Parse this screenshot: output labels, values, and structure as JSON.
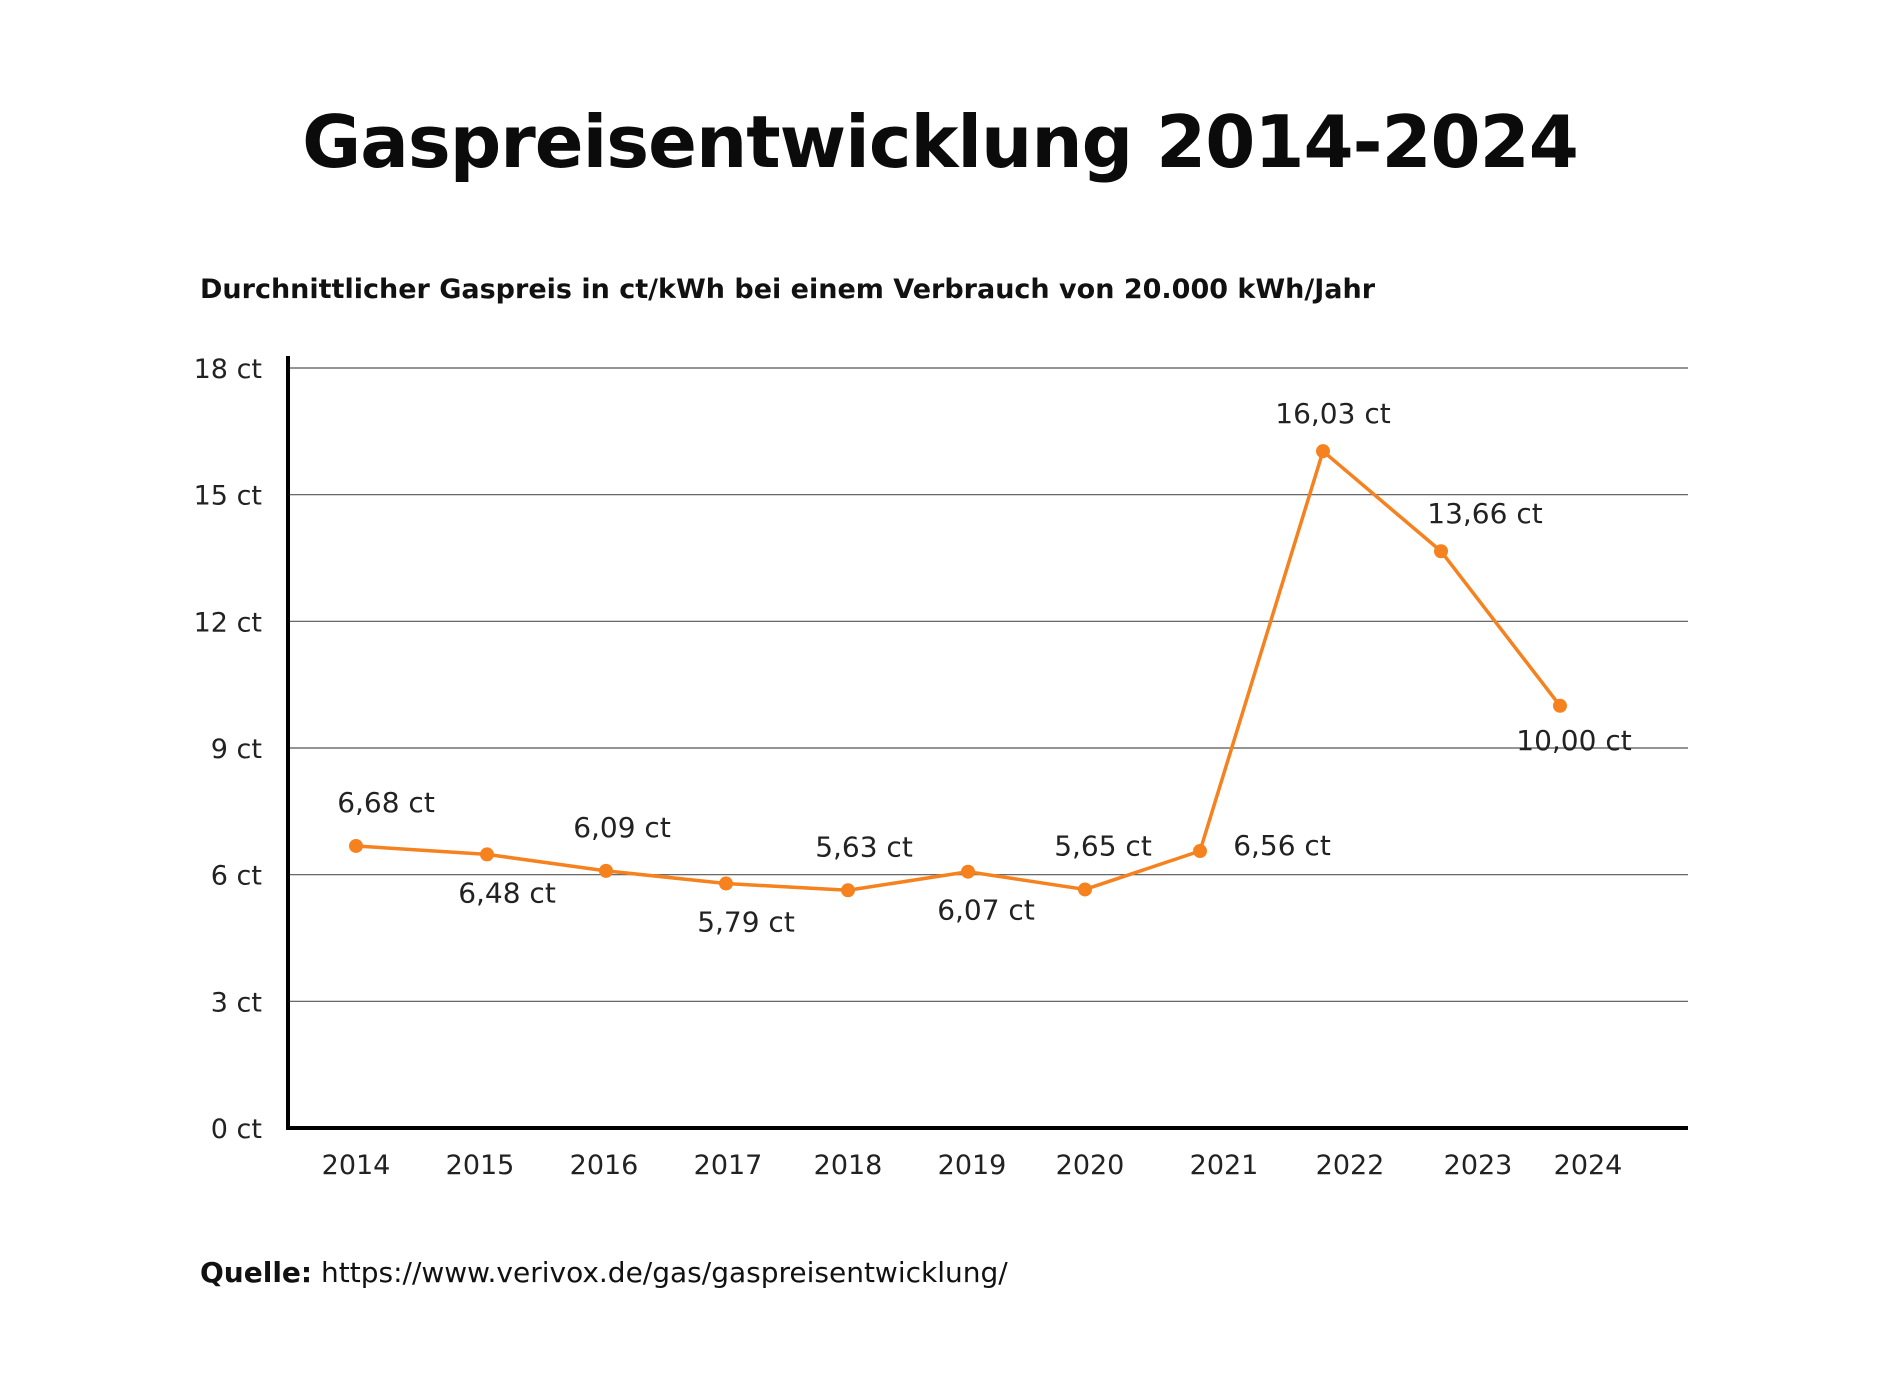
{
  "title": "Gaspreisentwicklung 2014-2024",
  "subtitle": "Durchnittlicher Gaspreis in ct/kWh bei einem Verbrauch von 20.000 kWh/Jahr",
  "source": {
    "label": "Quelle:",
    "url": "https://www.verivox.de/gas/gaspreisentwicklung/"
  },
  "colors": {
    "line": "#f5821f",
    "grid": "#555555",
    "axis": "#000000"
  },
  "chart_data": {
    "type": "line",
    "title": "Gaspreisentwicklung 2014-2024",
    "subtitle": "Durchnittlicher Gaspreis in ct/kWh bei einem Verbrauch von 20.000 kWh/Jahr",
    "xlabel": "",
    "ylabel": "",
    "ylim": [
      0,
      18
    ],
    "yticks": [
      0,
      3,
      6,
      9,
      12,
      15,
      18
    ],
    "ytick_labels": [
      "0 ct",
      "3 ct",
      "6 ct",
      "9 ct",
      "12 ct",
      "15 ct",
      "18 ct"
    ],
    "grid": true,
    "categories": [
      "2014",
      "2015",
      "2016",
      "2017",
      "2018",
      "2019",
      "2020",
      "2021",
      "2022",
      "2023",
      "2024"
    ],
    "values": [
      6.68,
      6.48,
      6.09,
      5.79,
      5.63,
      6.07,
      5.65,
      6.56,
      16.03,
      13.66,
      10.0
    ],
    "data_labels": [
      "6,68 ct",
      "6,48 ct",
      "6,09 ct",
      "5,79 ct",
      "5,63 ct",
      "6,07 ct",
      "5,65 ct",
      "6,56 ct",
      "16,03 ct",
      "13,66 ct",
      "10,00 ct"
    ]
  }
}
